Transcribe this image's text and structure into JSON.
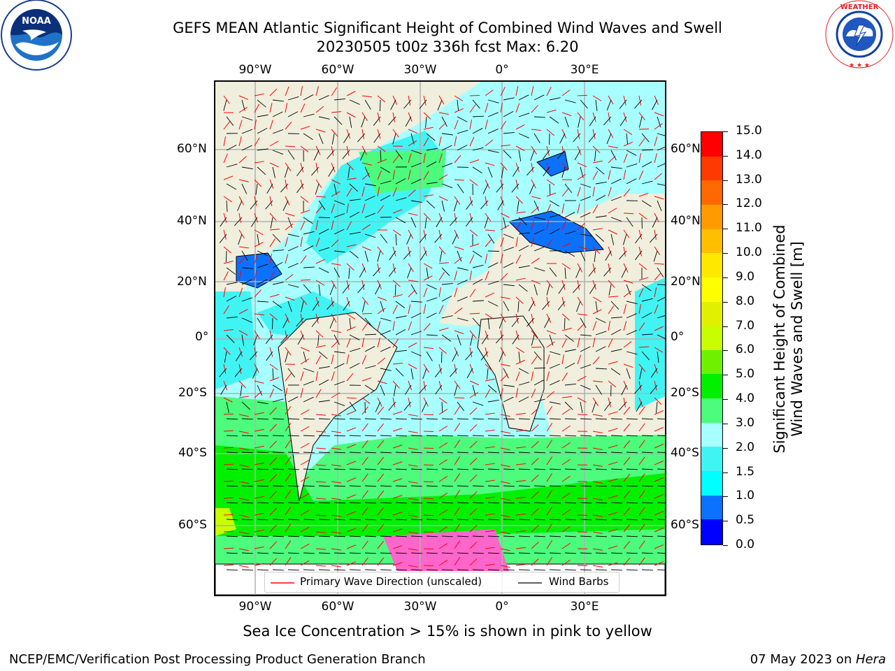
{
  "title": {
    "line1": "GEFS MEAN Atlantic Significant Height of Combined Wind Waves and Swell",
    "line2": "20230505 t00z 336h fcst   Max: 6.20"
  },
  "logos": {
    "left": {
      "name": "NOAA",
      "ring_text": "NATIONAL OCEANIC AND ATMOSPHERIC ADMINISTRATION · U.S. DEPARTMENT OF COMMERCE"
    },
    "right": {
      "name": "NATIONAL WEATHER SERVICE"
    }
  },
  "map": {
    "lon_ticks_top": [
      "90°W",
      "60°W",
      "30°W",
      "0°",
      "30°E"
    ],
    "lon_ticks_bottom": [
      "90°W",
      "60°W",
      "30°W",
      "0°",
      "30°E"
    ],
    "lat_ticks_left": [
      "60°N",
      "40°N",
      "20°N",
      "0°",
      "20°S",
      "40°S",
      "60°S"
    ],
    "lat_ticks_right": [
      "60°N",
      "40°N",
      "20°N",
      "0°",
      "20°S",
      "40°S",
      "60°S"
    ],
    "legend": {
      "wave_direction": "Primary Wave Direction (unscaled)",
      "wind_barbs": "Wind Barbs"
    },
    "colors": {
      "land": "#f0eedc",
      "wave_arrow": "#ff0000",
      "barb": "#000000",
      "grid": "#b0b0b0"
    }
  },
  "colorbar": {
    "label": "Significant Height of Combined Wind Waves and Swell [m]",
    "unit": "m",
    "ticks": [
      "15.0",
      "14.0",
      "13.0",
      "12.0",
      "11.0",
      "10.0",
      "9.0",
      "8.0",
      "7.0",
      "6.0",
      "5.0",
      "4.0",
      "3.0",
      "2.0",
      "1.5",
      "1.0",
      "0.5",
      "0.0"
    ],
    "bins": [
      {
        "from": 0.0,
        "to": 0.5,
        "color": "#0000ff"
      },
      {
        "from": 0.5,
        "to": 1.0,
        "color": "#0a72ff"
      },
      {
        "from": 1.0,
        "to": 1.5,
        "color": "#00ffff"
      },
      {
        "from": 1.5,
        "to": 2.0,
        "color": "#40f4f4"
      },
      {
        "from": 2.0,
        "to": 3.0,
        "color": "#a8ffff"
      },
      {
        "from": 3.0,
        "to": 4.0,
        "color": "#4dfc7c"
      },
      {
        "from": 4.0,
        "to": 5.0,
        "color": "#00f000"
      },
      {
        "from": 5.0,
        "to": 6.0,
        "color": "#6ef000"
      },
      {
        "from": 6.0,
        "to": 7.0,
        "color": "#c8ff00"
      },
      {
        "from": 7.0,
        "to": 8.0,
        "color": "#e0f000"
      },
      {
        "from": 8.0,
        "to": 9.0,
        "color": "#ffff00"
      },
      {
        "from": 9.0,
        "to": 10.0,
        "color": "#ffe800"
      },
      {
        "from": 10.0,
        "to": 11.0,
        "color": "#ffbf00"
      },
      {
        "from": 11.0,
        "to": 12.0,
        "color": "#ff9a00"
      },
      {
        "from": 12.0,
        "to": 13.0,
        "color": "#ff6800"
      },
      {
        "from": 13.0,
        "to": 14.0,
        "color": "#ff3a00"
      },
      {
        "from": 14.0,
        "to": 15.0,
        "color": "#ff0000"
      }
    ]
  },
  "captions": {
    "sea_ice": "Sea Ice Concentration > 15% is shown in pink to yellow",
    "footer_left": "NCEP/EMC/Verification Post Processing Product Generation Branch",
    "footer_right_date": "07 May 2023 on ",
    "footer_right_host": "Hera"
  }
}
